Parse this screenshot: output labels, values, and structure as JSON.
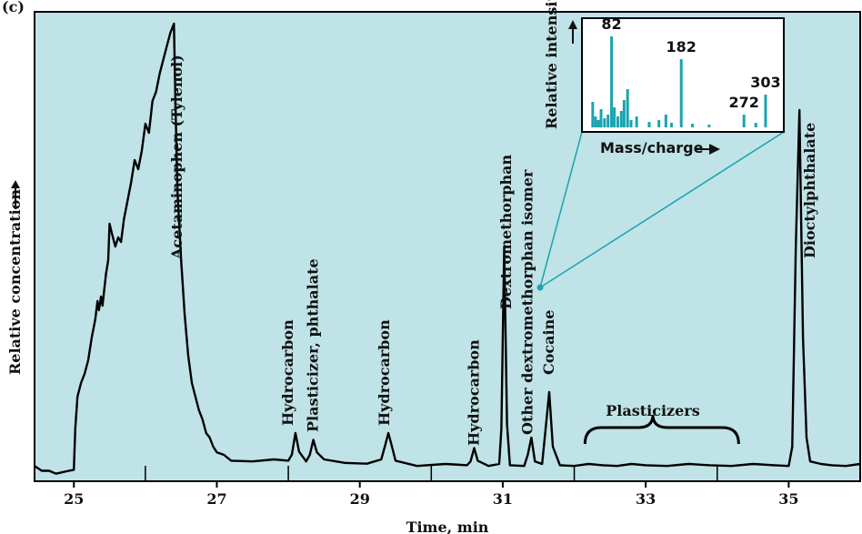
{
  "panel_label": "(c)",
  "chart_data": {
    "type": "line",
    "title": "",
    "xlabel": "Time, min",
    "ylabel": "Relative concentration",
    "xlim": [
      24.45,
      36.0
    ],
    "ylim": [
      0,
      100
    ],
    "x_ticks": [
      25,
      27,
      29,
      31,
      33,
      35
    ],
    "minor_ticks": [
      26,
      28,
      30,
      32,
      34
    ],
    "grid": false,
    "colors": {
      "background": "#bfe3e7",
      "trace": "#000000",
      "highlight": "#1aa3b0"
    },
    "series": [
      {
        "values": [
          [
            24.45,
            2
          ],
          [
            24.55,
            0.5
          ],
          [
            24.65,
            0.8
          ],
          [
            24.75,
            0.3
          ],
          [
            24.9,
            0.4
          ],
          [
            25.0,
            1
          ],
          [
            25.02,
            10
          ],
          [
            25.05,
            17
          ],
          [
            25.1,
            20
          ],
          [
            25.15,
            22
          ],
          [
            25.2,
            25
          ],
          [
            25.25,
            30
          ],
          [
            25.3,
            34
          ],
          [
            25.33,
            38
          ],
          [
            25.35,
            36
          ],
          [
            25.38,
            39
          ],
          [
            25.4,
            37
          ],
          [
            25.45,
            44
          ],
          [
            25.48,
            47
          ],
          [
            25.5,
            55
          ],
          [
            25.53,
            53
          ],
          [
            25.58,
            50
          ],
          [
            25.62,
            52
          ],
          [
            25.66,
            51
          ],
          [
            25.7,
            56
          ],
          [
            25.75,
            60
          ],
          [
            25.8,
            64
          ],
          [
            25.85,
            69
          ],
          [
            25.9,
            67
          ],
          [
            25.95,
            71
          ],
          [
            26.0,
            77
          ],
          [
            26.05,
            75
          ],
          [
            26.1,
            82
          ],
          [
            26.15,
            84
          ],
          [
            26.2,
            88
          ],
          [
            26.25,
            91
          ],
          [
            26.3,
            94
          ],
          [
            26.35,
            97
          ],
          [
            26.4,
            99
          ],
          [
            26.42,
            82
          ],
          [
            26.45,
            62
          ],
          [
            26.5,
            47
          ],
          [
            26.55,
            35
          ],
          [
            26.6,
            26
          ],
          [
            26.65,
            20
          ],
          [
            26.7,
            17
          ],
          [
            26.75,
            14
          ],
          [
            26.8,
            12
          ],
          [
            26.85,
            9
          ],
          [
            26.9,
            8
          ],
          [
            26.95,
            6
          ],
          [
            27.0,
            5
          ],
          [
            27.1,
            4
          ],
          [
            27.2,
            3
          ],
          [
            27.5,
            3
          ],
          [
            27.8,
            3
          ],
          [
            28.0,
            3
          ],
          [
            28.05,
            4.5
          ],
          [
            28.1,
            9
          ],
          [
            28.15,
            5
          ],
          [
            28.25,
            3
          ],
          [
            28.3,
            4
          ],
          [
            28.35,
            7.5
          ],
          [
            28.4,
            5
          ],
          [
            28.5,
            3
          ],
          [
            28.8,
            2.5
          ],
          [
            29.1,
            2.5
          ],
          [
            29.3,
            3
          ],
          [
            29.35,
            6
          ],
          [
            29.4,
            9
          ],
          [
            29.45,
            6
          ],
          [
            29.5,
            3
          ],
          [
            29.8,
            2
          ],
          [
            30.2,
            2
          ],
          [
            30.5,
            2
          ],
          [
            30.55,
            3
          ],
          [
            30.6,
            5.5
          ],
          [
            30.65,
            3
          ],
          [
            30.8,
            2
          ],
          [
            30.95,
            2
          ],
          [
            30.98,
            10
          ],
          [
            31.02,
            50
          ],
          [
            31.06,
            11
          ],
          [
            31.1,
            2
          ],
          [
            31.3,
            2
          ],
          [
            31.35,
            4
          ],
          [
            31.4,
            8
          ],
          [
            31.45,
            3
          ],
          [
            31.55,
            2
          ],
          [
            31.6,
            10
          ],
          [
            31.65,
            18
          ],
          [
            31.7,
            6
          ],
          [
            31.8,
            2
          ],
          [
            32.0,
            2
          ],
          [
            32.2,
            2
          ],
          [
            32.4,
            2
          ],
          [
            32.6,
            2
          ],
          [
            32.8,
            2
          ],
          [
            33.0,
            2
          ],
          [
            33.3,
            2
          ],
          [
            33.6,
            2
          ],
          [
            33.9,
            2
          ],
          [
            34.2,
            2
          ],
          [
            34.5,
            2
          ],
          [
            34.8,
            2
          ],
          [
            35.0,
            2
          ],
          [
            35.05,
            6
          ],
          [
            35.1,
            50
          ],
          [
            35.15,
            80
          ],
          [
            35.2,
            30
          ],
          [
            35.25,
            8
          ],
          [
            35.3,
            3
          ],
          [
            35.45,
            2
          ],
          [
            35.6,
            2
          ],
          [
            35.8,
            2
          ],
          [
            36.0,
            2
          ]
        ]
      }
    ],
    "annotations": [
      {
        "label": "Acetaminophen (Tylenol)",
        "x": 26.45
      },
      {
        "label": "Hydrocarbon",
        "x": 28.0
      },
      {
        "label": "Plasticizer, phthalate",
        "x": 28.35
      },
      {
        "label": "Hydrocarbon",
        "x": 29.35
      },
      {
        "label": "Hydrocarbon",
        "x": 30.6
      },
      {
        "label": "Dextromethorphan",
        "x": 31.05
      },
      {
        "label": "Other dextromethorphan isomer",
        "x": 31.35
      },
      {
        "label": "Cocaine",
        "x": 31.65,
        "highlight": true
      },
      {
        "label": "Plasticizers",
        "x": 33.1,
        "range": [
          32.15,
          34.3
        ]
      },
      {
        "label": "Dioctylphthalate",
        "x": 35.3
      }
    ],
    "inset": {
      "type": "bar",
      "xlabel": "Mass/charge",
      "ylabel": "Relative intensity",
      "xlim": [
        50,
        320
      ],
      "ylim": [
        0,
        100
      ],
      "peaks": [
        [
          55,
          28
        ],
        [
          59,
          12
        ],
        [
          63,
          8
        ],
        [
          67,
          20
        ],
        [
          72,
          10
        ],
        [
          77,
          14
        ],
        [
          82,
          100
        ],
        [
          86,
          22
        ],
        [
          91,
          12
        ],
        [
          96,
          18
        ],
        [
          100,
          30
        ],
        [
          105,
          42
        ],
        [
          110,
          8
        ],
        [
          118,
          12
        ],
        [
          136,
          6
        ],
        [
          150,
          8
        ],
        [
          160,
          14
        ],
        [
          168,
          5
        ],
        [
          182,
          75
        ],
        [
          198,
          4
        ],
        [
          222,
          3
        ],
        [
          272,
          14
        ],
        [
          289,
          5
        ],
        [
          303,
          36
        ]
      ],
      "peak_labels": [
        {
          "label": "82",
          "x": 82
        },
        {
          "label": "182",
          "x": 182
        },
        {
          "label": "272",
          "x": 272
        },
        {
          "label": "303",
          "x": 303
        }
      ]
    }
  }
}
